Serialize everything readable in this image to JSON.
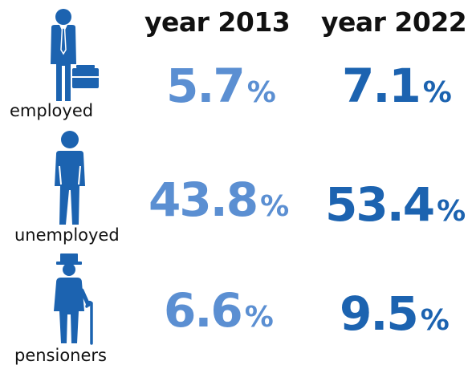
{
  "columns": {
    "y2013": "year 2013",
    "y2022": "year 2022"
  },
  "colors": {
    "icon": "#1c63b0",
    "value_2013": "#5b8fd2",
    "value_2022": "#1c63b0"
  },
  "rows": [
    {
      "label": "employed",
      "icon": "businessman-icon",
      "v2013": "5.7",
      "v2022": "7.1",
      "unit": "%"
    },
    {
      "label": "unemployed",
      "icon": "unemployed-person-icon",
      "v2013": "43.8",
      "v2022": "53.4",
      "unit": "%"
    },
    {
      "label": "pensioners",
      "icon": "elderly-person-icon",
      "v2013": "6.6",
      "v2022": "9.5",
      "unit": "%"
    }
  ]
}
